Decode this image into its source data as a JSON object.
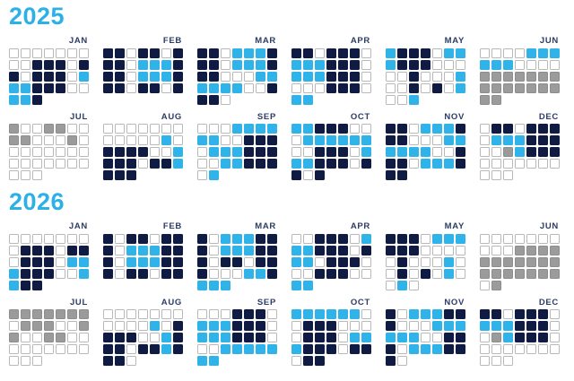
{
  "chart_data": {
    "type": "heatmap",
    "subtype": "two-year-calendar",
    "colors": {
      "navy": "#101b43",
      "cyan": "#2fb3e8",
      "gray": "#9b9b9b",
      "empty_fill": "#ffffff",
      "empty_border": "#b9b9b9",
      "title": "#2bb1e6",
      "month_label": "#2d3c66"
    },
    "cell_codes": {
      "w": "empty",
      "n": "navy",
      "c": "cyan",
      "g": "gray"
    },
    "layout": {
      "months_per_row": 6,
      "days_per_row": 7,
      "legend": "none",
      "grid": "off"
    },
    "years": [
      {
        "label": "2025",
        "months": [
          {
            "name": "JAN",
            "days": "wwwwwwwwwnnnwnnwnnnwcccnnnwwccn"
          },
          {
            "name": "FEB",
            "days": "nnwnnwnnnwcccnnnwcccnnnwnnwn"
          },
          {
            "name": "MAR",
            "days": "nnwcccnnnwcccnnnwwwccccccwwnnnw"
          },
          {
            "name": "APR",
            "days": "nnwnnnwcccnnnwcccnnnwwwwnnnwcc"
          },
          {
            "name": "MAY",
            "days": "cnnnwcccnnnwwwwwnwwwcwwnwnwcwwc"
          },
          {
            "name": "JUN",
            "days": "wwwwccccccwwwwgggggggggggggggg"
          },
          {
            "name": "JUL",
            "days": "gwwggwwggwwwgwwwwwwwwwwwwwwwwww"
          },
          {
            "name": "AUG",
            "days": "wwwwwwwwwwwwcwnnnnwwcnnnwnncnnn"
          },
          {
            "name": "SEP",
            "days": "wwwccccccwwnnnwcccnnnwwccnnnwc"
          },
          {
            "name": "OCT",
            "days": "ccnnnwwwccccccwwnnnwcccnnnwnnwn"
          },
          {
            "name": "NOV",
            "days": "nnwcccnnnwwwccccccwwnnnwcccnnn"
          },
          {
            "name": "DEC",
            "days": "wnnwnnnwcccnnnwwgcnnnwwwwwwwwww"
          }
        ]
      },
      {
        "label": "2026",
        "months": [
          {
            "name": "JAN",
            "days": "wwwwwwwwnnnwnnwnnnwcccnnnwwccnn"
          },
          {
            "name": "FEB",
            "days": "nwnnwnnnwcccnnnwcccnnnwnnwnn"
          },
          {
            "name": "MAR",
            "days": "nwcccnnnwcccnnnwnnwnnnwwwccnccc"
          },
          {
            "name": "APR",
            "days": "wwnnnwcccnnnwnccwnnnwwwnnnwwcc"
          },
          {
            "name": "MAY",
            "days": "nnnwcccnnnwwwwwnwwwcwwnwnwcwwcw"
          },
          {
            "name": "JUN",
            "days": "wwwwwwwwwwggggggggggggggggggwg"
          },
          {
            "name": "JUL",
            "days": "gggggggwgggwwggwwggwwwwwwwwwwww"
          },
          {
            "name": "AUG",
            "days": "wwwwwwwwwwwcwnnnnwwcnnnwnncnnnw"
          },
          {
            "name": "SEP",
            "days": "wwwnnnwcccnnnwcccnnnwwwccccccc"
          },
          {
            "name": "OCT",
            "days": "ccccccwwnnnwwwwnnnwcccnnnwnnwnn"
          },
          {
            "name": "NOV",
            "days": "nwcccnnnwwwccccccwwnnnwcccnnnw"
          },
          {
            "name": "DEC",
            "days": "nnwnnnwcccnnnwwgcnnnwwwwwwwwwww"
          }
        ]
      }
    ]
  }
}
